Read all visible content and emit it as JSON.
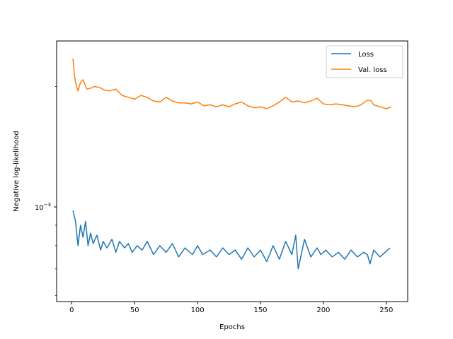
{
  "chart_data": {
    "type": "line",
    "title": "",
    "xlabel": "Epochs",
    "ylabel": "Negative log-likelihood",
    "xlim": [
      -12,
      267
    ],
    "ylim": [
      0.00058,
      0.0026
    ],
    "yscale": "log",
    "xticks": [
      0,
      50,
      100,
      150,
      200,
      250
    ],
    "yticks": [
      {
        "value": 0.001,
        "base": "10",
        "exp": "−3"
      }
    ],
    "grid": false,
    "legend_position": "upper right",
    "series": [
      {
        "name": "Loss",
        "color": "#1f77b4",
        "x": [
          1,
          3,
          5,
          7,
          9,
          11,
          13,
          15,
          17,
          20,
          23,
          25,
          28,
          32,
          35,
          38,
          42,
          45,
          48,
          52,
          56,
          60,
          65,
          70,
          75,
          80,
          85,
          90,
          96,
          100,
          104,
          110,
          115,
          120,
          125,
          130,
          135,
          140,
          145,
          150,
          155,
          160,
          165,
          170,
          175,
          178,
          180,
          185,
          190,
          195,
          198,
          202,
          207,
          212,
          217,
          222,
          227,
          232,
          235,
          237,
          240,
          245,
          249,
          253
        ],
        "y": [
          0.00098,
          0.00092,
          0.0008,
          0.0009,
          0.00084,
          0.00092,
          0.0008,
          0.00086,
          0.00081,
          0.00085,
          0.00078,
          0.00082,
          0.00079,
          0.00083,
          0.00077,
          0.00082,
          0.00079,
          0.00081,
          0.00077,
          0.0008,
          0.00078,
          0.00082,
          0.00076,
          0.0008,
          0.00077,
          0.00081,
          0.00075,
          0.00079,
          0.00076,
          0.0008,
          0.00076,
          0.00078,
          0.00075,
          0.00079,
          0.00076,
          0.00078,
          0.00074,
          0.00079,
          0.00075,
          0.00078,
          0.00073,
          0.0008,
          0.00074,
          0.00082,
          0.00076,
          0.00085,
          0.0007,
          0.00083,
          0.00075,
          0.00079,
          0.00076,
          0.00078,
          0.00075,
          0.00077,
          0.00074,
          0.00078,
          0.00075,
          0.00077,
          0.00076,
          0.00072,
          0.00078,
          0.00075,
          0.00077,
          0.00079
        ]
      },
      {
        "name": "Val. loss",
        "color": "#ff7f0e",
        "x": [
          1,
          2,
          3,
          5,
          7,
          9,
          12,
          15,
          18,
          22,
          26,
          30,
          35,
          40,
          45,
          50,
          55,
          60,
          65,
          70,
          75,
          80,
          85,
          90,
          95,
          100,
          105,
          110,
          115,
          120,
          125,
          130,
          135,
          140,
          145,
          150,
          155,
          160,
          165,
          170,
          175,
          180,
          185,
          190,
          195,
          200,
          205,
          210,
          215,
          220,
          225,
          230,
          235,
          238,
          240,
          245,
          250,
          254
        ],
        "y": [
          0.00235,
          0.00215,
          0.00205,
          0.00195,
          0.00205,
          0.00208,
          0.00197,
          0.00198,
          0.002,
          0.00199,
          0.00196,
          0.00195,
          0.00197,
          0.0019,
          0.00188,
          0.00186,
          0.0019,
          0.00188,
          0.00184,
          0.00183,
          0.00188,
          0.00184,
          0.00182,
          0.00182,
          0.00181,
          0.00183,
          0.00179,
          0.0018,
          0.00178,
          0.0018,
          0.00178,
          0.00181,
          0.00183,
          0.00179,
          0.00177,
          0.00178,
          0.00176,
          0.00179,
          0.00183,
          0.00188,
          0.00183,
          0.00184,
          0.00182,
          0.00184,
          0.00187,
          0.00181,
          0.0018,
          0.00181,
          0.0018,
          0.00179,
          0.00178,
          0.0018,
          0.00185,
          0.00184,
          0.0018,
          0.00178,
          0.00176,
          0.00178
        ]
      }
    ]
  }
}
